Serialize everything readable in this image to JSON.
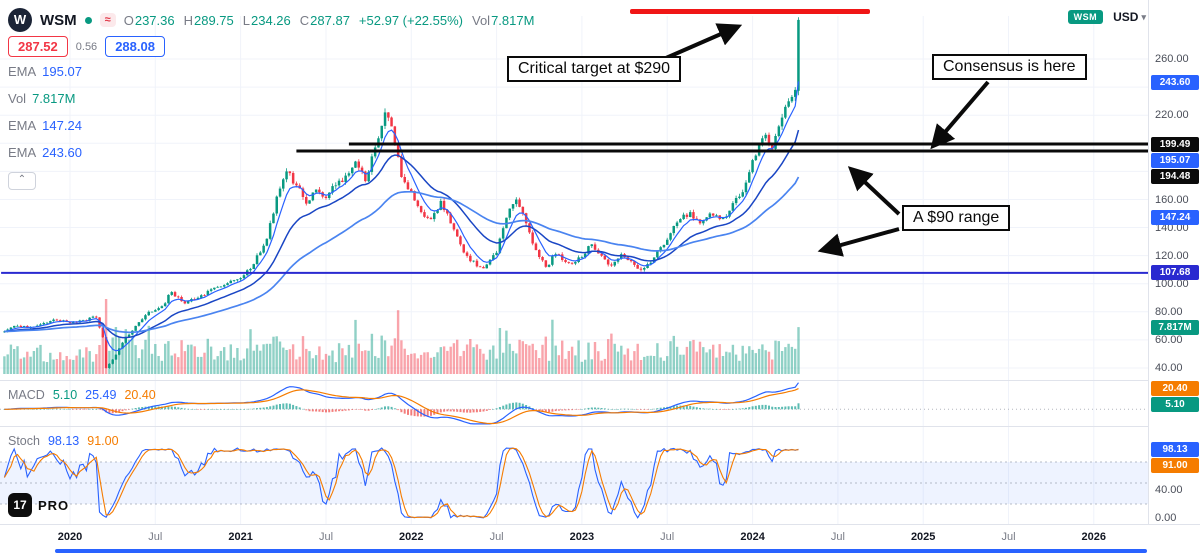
{
  "colors": {
    "up": "#089981",
    "down": "#f23645",
    "blue": "#2962ff",
    "orange": "#f57c00",
    "navy": "#2a2ad0",
    "black_line": "#0a0a0a",
    "annotation_red": "#f01616",
    "grid": "#f0f3fa",
    "separator": "#e0e3eb"
  },
  "header": {
    "logo_letter": "W",
    "symbol": "WSM",
    "market_badge": "≈",
    "o_label": "O",
    "o_value": "237.36",
    "h_label": "H",
    "h_value": "289.75",
    "l_label": "L",
    "l_value": "234.26",
    "c_label": "C",
    "c_value": "287.87",
    "change": "+52.97 (+22.55%)",
    "vol_label": "Vol",
    "vol_value": "7.817M",
    "symbol_badge": "WSM",
    "currency": "USD",
    "currency_chevron": "▾"
  },
  "quote": {
    "bid": "287.52",
    "spread": "0.56",
    "ask": "288.08"
  },
  "legend": {
    "rows": [
      {
        "label": "EMA",
        "value": "195.07"
      },
      {
        "label": "Vol",
        "value": "7.817M"
      },
      {
        "label": "EMA",
        "value": "147.24"
      },
      {
        "label": "EMA",
        "value": "243.60"
      }
    ],
    "collapse_icon": "⌃"
  },
  "annotations": {
    "critical_target": "Critical target at $290",
    "consensus": "Consensus is here",
    "range": "A $90 range"
  },
  "macd_legend": {
    "label": "MACD",
    "hist": "5.10",
    "macd": "25.49",
    "signal": "20.40"
  },
  "stoch_legend": {
    "label": "Stoch",
    "k": "98.13",
    "d": "91.00"
  },
  "watermark": {
    "logo_text": "17",
    "label": "PRO"
  },
  "axis": {
    "price_ticks": [
      {
        "label": "260.00",
        "v": 260
      },
      {
        "label": "220.00",
        "v": 220
      },
      {
        "label": "160.00",
        "v": 160
      },
      {
        "label": "140.00",
        "v": 140
      },
      {
        "label": "120.00",
        "v": 120
      },
      {
        "label": "100.00",
        "v": 100
      },
      {
        "label": "80.00",
        "v": 80
      },
      {
        "label": "60.00",
        "v": 60
      },
      {
        "label": "40.00",
        "v": 40
      }
    ],
    "price_grid": [
      260,
      240,
      220,
      200,
      180,
      160,
      140,
      120,
      100,
      80,
      60,
      40
    ],
    "stoch_ticks": [
      {
        "label": "40.00",
        "v": 40
      },
      {
        "label": "0.00",
        "v": 0
      }
    ],
    "time_ticks": [
      {
        "label": "2020",
        "week": 0,
        "major": true
      },
      {
        "label": "Jul",
        "week": 26,
        "major": false
      },
      {
        "label": "2021",
        "week": 52,
        "major": true
      },
      {
        "label": "Jul",
        "week": 78,
        "major": false
      },
      {
        "label": "2022",
        "week": 104,
        "major": true
      },
      {
        "label": "Jul",
        "week": 130,
        "major": false
      },
      {
        "label": "2023",
        "week": 156,
        "major": true
      },
      {
        "label": "Jul",
        "week": 182,
        "major": false
      },
      {
        "label": "2024",
        "week": 208,
        "major": true
      },
      {
        "label": "Jul",
        "week": 234,
        "major": false
      },
      {
        "label": "2025",
        "week": 260,
        "major": true
      },
      {
        "label": "Jul",
        "week": 286,
        "major": false
      },
      {
        "label": "2026",
        "week": 312,
        "major": true
      }
    ]
  },
  "badges": [
    {
      "label": "243.60",
      "bg": "#2962ff",
      "pane": "price",
      "value": 243.6
    },
    {
      "label": "199.49",
      "bg": "#0a0a0a",
      "pane": "price",
      "value": 199.49
    },
    {
      "label": "195.07",
      "bg": "#2962ff",
      "pane": "price",
      "value": 195.07
    },
    {
      "label": "194.48",
      "bg": "#0a0a0a",
      "pane": "price",
      "value": 194.48
    },
    {
      "label": "147.24",
      "bg": "#2962ff",
      "pane": "price",
      "value": 147.24
    },
    {
      "label": "107.68",
      "bg": "#2a2ad0",
      "pane": "price",
      "value": 107.68
    },
    {
      "label": "7.817M",
      "bg": "#089981",
      "pane": "fixed",
      "y": 320
    },
    {
      "label": "20.40",
      "bg": "#f57c00",
      "pane": "macd",
      "value": 20.4
    },
    {
      "label": "5.10",
      "bg": "#089981",
      "pane": "macd",
      "value": 5.1
    },
    {
      "label": "98.13",
      "bg": "#2962ff",
      "pane": "stoch",
      "value": 98.13
    },
    {
      "label": "91.00",
      "bg": "#f57c00",
      "pane": "stoch",
      "value": 91.0
    }
  ],
  "chart_data": {
    "type": "candlestick",
    "symbol": "WSM",
    "interval": "weekly",
    "x_range": [
      "2019-08",
      "2026-03"
    ],
    "price_axis_range": [
      30,
      295
    ],
    "last_candle": {
      "o": 237.36,
      "h": 289.75,
      "l": 234.26,
      "c": 287.87
    },
    "last_volume_m": 7.817,
    "emas": [
      6,
      20,
      52
    ],
    "levels": [
      {
        "price": 199.49,
        "from_week": 85,
        "color": "#0a0a0a",
        "width": 3
      },
      {
        "price": 194.48,
        "from_week": 69,
        "color": "#0a0a0a",
        "width": 3
      },
      {
        "price": 107.68,
        "from_week": -21,
        "color": "#2a2ad0",
        "width": 2
      }
    ],
    "price_anchors": [
      [
        -20,
        66
      ],
      [
        -16,
        70
      ],
      [
        -12,
        69
      ],
      [
        -8,
        72
      ],
      [
        -4,
        74
      ],
      [
        0,
        72
      ],
      [
        4,
        74
      ],
      [
        8,
        76
      ],
      [
        10,
        62
      ],
      [
        11,
        40
      ],
      [
        13,
        46
      ],
      [
        16,
        58
      ],
      [
        20,
        70
      ],
      [
        24,
        80
      ],
      [
        28,
        84
      ],
      [
        31,
        94
      ],
      [
        35,
        86
      ],
      [
        39,
        90
      ],
      [
        43,
        96
      ],
      [
        47,
        99
      ],
      [
        52,
        104
      ],
      [
        56,
        114
      ],
      [
        60,
        132
      ],
      [
        63,
        162
      ],
      [
        66,
        180
      ],
      [
        69,
        170
      ],
      [
        72,
        157
      ],
      [
        75,
        167
      ],
      [
        78,
        161
      ],
      [
        81,
        170
      ],
      [
        84,
        177
      ],
      [
        87,
        187
      ],
      [
        90,
        173
      ],
      [
        93,
        197
      ],
      [
        96,
        222
      ],
      [
        98,
        212
      ],
      [
        101,
        176
      ],
      [
        104,
        166
      ],
      [
        107,
        151
      ],
      [
        110,
        146
      ],
      [
        113,
        159
      ],
      [
        116,
        143
      ],
      [
        119,
        128
      ],
      [
        122,
        116
      ],
      [
        126,
        111
      ],
      [
        130,
        122
      ],
      [
        133,
        147
      ],
      [
        136,
        160
      ],
      [
        139,
        143
      ],
      [
        142,
        124
      ],
      [
        145,
        112
      ],
      [
        148,
        121
      ],
      [
        152,
        115
      ],
      [
        156,
        119
      ],
      [
        159,
        128
      ],
      [
        162,
        120
      ],
      [
        165,
        113
      ],
      [
        168,
        121
      ],
      [
        171,
        116
      ],
      [
        174,
        110
      ],
      [
        177,
        115
      ],
      [
        180,
        126
      ],
      [
        183,
        136
      ],
      [
        186,
        146
      ],
      [
        189,
        151
      ],
      [
        192,
        143
      ],
      [
        195,
        150
      ],
      [
        198,
        146
      ],
      [
        201,
        152
      ],
      [
        204,
        162
      ],
      [
        206,
        172
      ],
      [
        208,
        188
      ],
      [
        210,
        200
      ],
      [
        212,
        206
      ],
      [
        214,
        196
      ],
      [
        216,
        212
      ],
      [
        218,
        226
      ],
      [
        220,
        233
      ],
      [
        221,
        238
      ],
      [
        222,
        287.87
      ]
    ]
  }
}
